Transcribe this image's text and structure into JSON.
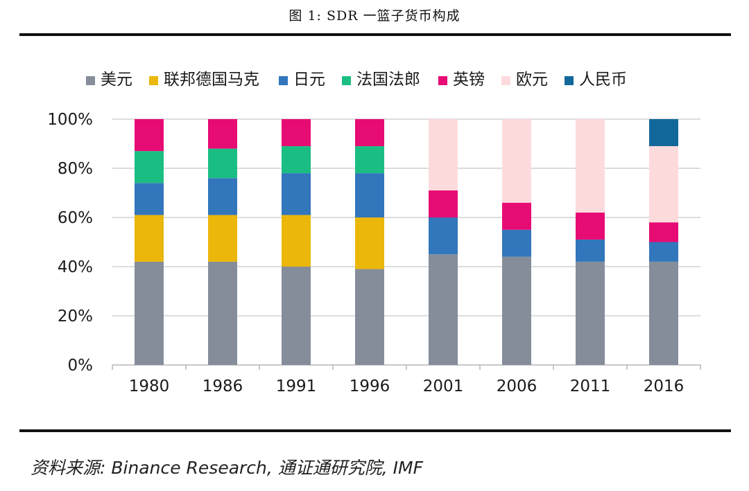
{
  "figure": {
    "title": "图 1:    SDR 一篮子货币构成",
    "source": "资料来源: Binance Research, 通证通研究院, IMF"
  },
  "chart_data": {
    "type": "bar",
    "stacked": true,
    "title": "",
    "xlabel": "",
    "ylabel": "",
    "ylim": [
      0,
      100
    ],
    "y_ticks": [
      "0%",
      "20%",
      "40%",
      "60%",
      "80%",
      "100%"
    ],
    "y_tick_values": [
      0,
      20,
      40,
      60,
      80,
      100
    ],
    "grid": true,
    "legend_position": "top",
    "categories": [
      "1980",
      "1986",
      "1991",
      "1996",
      "2001",
      "2006",
      "2011",
      "2016"
    ],
    "series": [
      {
        "name": "美元",
        "color": "#858d9b",
        "values": [
          42,
          42,
          40,
          39,
          45,
          44,
          42,
          42
        ]
      },
      {
        "name": "联邦德国马克",
        "color": "#eab70a",
        "values": [
          19,
          19,
          21,
          21,
          0,
          0,
          0,
          0
        ]
      },
      {
        "name": "日元",
        "color": "#3276bc",
        "values": [
          13,
          15,
          17,
          18,
          15,
          11,
          9,
          8
        ]
      },
      {
        "name": "法国法郎",
        "color": "#1bbe82",
        "values": [
          13,
          12,
          11,
          11,
          0,
          0,
          0,
          0
        ]
      },
      {
        "name": "英镑",
        "color": "#e70b74",
        "values": [
          13,
          12,
          11,
          11,
          11,
          11,
          11,
          8
        ]
      },
      {
        "name": "欧元",
        "color": "#fddbdd",
        "values": [
          0,
          0,
          0,
          0,
          29,
          34,
          38,
          31
        ]
      },
      {
        "name": "人民币",
        "color": "#12689b",
        "values": [
          0,
          0,
          0,
          0,
          0,
          0,
          0,
          11
        ]
      }
    ]
  }
}
